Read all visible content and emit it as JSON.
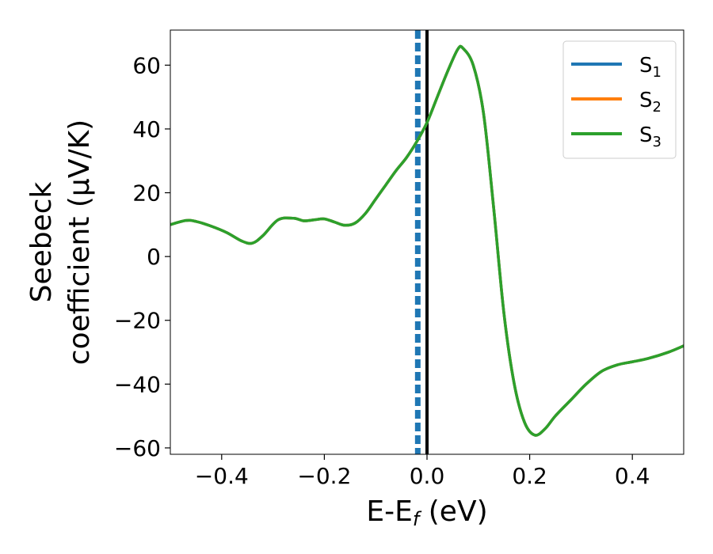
{
  "chart_data": {
    "type": "line",
    "xlabel": {
      "main": "E-E",
      "sub": "f",
      "suffix": " (eV)"
    },
    "ylabel": {
      "line1": "Seebeck",
      "line2": "coefficient  (μV/K)"
    },
    "xlim": [
      -0.5,
      0.5
    ],
    "ylim": [
      -62,
      71
    ],
    "xticks": [
      -0.4,
      -0.2,
      0.0,
      0.2,
      0.4
    ],
    "xtick_labels": [
      "−0.4",
      "−0.2",
      "0.0",
      "0.2",
      "0.4"
    ],
    "yticks": [
      -60,
      -40,
      -20,
      0,
      20,
      40,
      60
    ],
    "ytick_labels": [
      "−60",
      "−40",
      "−20",
      "0",
      "20",
      "40",
      "60"
    ],
    "grid": false,
    "legend_placement": "top-right",
    "vlines": [
      {
        "x": -0.018,
        "color": "#1f77b4",
        "style": "dashed"
      },
      {
        "x": 0.0,
        "color": "#000000",
        "style": "solid"
      }
    ],
    "x": [
      -0.5,
      -0.47,
      -0.45,
      -0.42,
      -0.39,
      -0.36,
      -0.34,
      -0.32,
      -0.29,
      -0.26,
      -0.24,
      -0.22,
      -0.2,
      -0.18,
      -0.16,
      -0.14,
      -0.12,
      -0.1,
      -0.08,
      -0.06,
      -0.04,
      -0.02,
      0.0,
      0.02,
      0.04,
      0.06,
      0.07,
      0.09,
      0.11,
      0.13,
      0.15,
      0.17,
      0.19,
      0.21,
      0.23,
      0.25,
      0.28,
      0.31,
      0.34,
      0.37,
      0.4,
      0.43,
      0.47,
      0.5
    ],
    "series": [
      {
        "name": "S",
        "sub": "1",
        "color": "#1f77b4",
        "values": [
          10,
          11.3,
          11,
          9.5,
          7.5,
          4.8,
          4.2,
          6.5,
          11.5,
          12,
          11.2,
          11.5,
          11.8,
          10.8,
          9.8,
          10.5,
          13.5,
          18,
          22.5,
          27,
          31,
          36,
          42,
          50,
          58,
          65,
          65.3,
          60,
          45,
          15,
          -18,
          -40,
          -52,
          -56,
          -54,
          -50,
          -45,
          -40,
          -36,
          -34,
          -33,
          -32,
          -30,
          -28
        ]
      },
      {
        "name": "S",
        "sub": "2",
        "color": "#ff7f0e",
        "values": [
          10,
          11.3,
          11,
          9.5,
          7.5,
          4.8,
          4.2,
          6.5,
          11.5,
          12,
          11.2,
          11.5,
          11.8,
          10.8,
          9.8,
          10.5,
          13.5,
          18,
          22.5,
          27,
          31,
          36,
          42,
          50,
          58,
          65,
          65.3,
          60,
          45,
          15,
          -18,
          -40,
          -52,
          -56,
          -54,
          -50,
          -45,
          -40,
          -36,
          -34,
          -33,
          -32,
          -30,
          -28
        ]
      },
      {
        "name": "S",
        "sub": "3",
        "color": "#2ca02c",
        "values": [
          10,
          11.3,
          11,
          9.5,
          7.5,
          4.8,
          4.2,
          6.5,
          11.5,
          12,
          11.2,
          11.5,
          11.8,
          10.8,
          9.8,
          10.5,
          13.5,
          18,
          22.5,
          27,
          31,
          36,
          42,
          50,
          58,
          65,
          65.3,
          60,
          45,
          15,
          -18,
          -40,
          -52,
          -56,
          -54,
          -50,
          -45,
          -40,
          -36,
          -34,
          -33,
          -32,
          -30,
          -28
        ]
      }
    ]
  }
}
